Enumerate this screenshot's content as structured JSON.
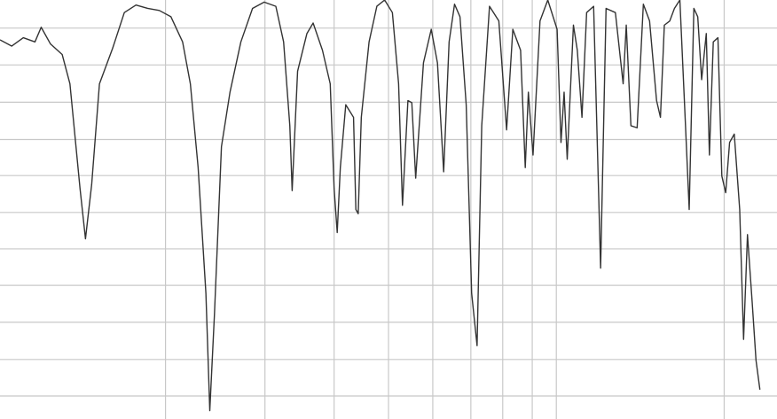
{
  "chart_data": {
    "type": "line",
    "title": "",
    "xlabel": "",
    "ylabel": "",
    "grid": true,
    "legend": "none",
    "xlim": [
      0,
      100
    ],
    "ylim": [
      0,
      100
    ],
    "line_color": "#333333",
    "grid_color": "#c8c8c8",
    "vertical_gridlines_x": [
      21.3,
      34.1,
      43.0,
      50.0,
      55.7,
      60.6,
      64.7,
      68.5,
      71.6,
      93.2
    ],
    "horizontal_gridlines_y": [
      93.3,
      84.5,
      75.6,
      66.7,
      58.1,
      49.3,
      40.6,
      31.9,
      23.1,
      14.2,
      5.5
    ],
    "series": [
      {
        "values": [
          [
            0.0,
            90.5
          ],
          [
            1.5,
            89.0
          ],
          [
            3.0,
            91.0
          ],
          [
            4.5,
            90.0
          ],
          [
            5.3,
            93.5
          ],
          [
            6.5,
            89.5
          ],
          [
            8.0,
            87.0
          ],
          [
            9.0,
            80.0
          ],
          [
            10.3,
            55.0
          ],
          [
            11.0,
            43.0
          ],
          [
            11.8,
            56.0
          ],
          [
            12.8,
            80.0
          ],
          [
            14.5,
            88.5
          ],
          [
            16.0,
            97.0
          ],
          [
            17.5,
            98.8
          ],
          [
            19.0,
            98.0
          ],
          [
            20.5,
            97.5
          ],
          [
            22.0,
            96.0
          ],
          [
            23.5,
            90.0
          ],
          [
            24.5,
            80.0
          ],
          [
            25.5,
            60.0
          ],
          [
            26.5,
            30.0
          ],
          [
            27.0,
            2.0
          ],
          [
            27.6,
            25.0
          ],
          [
            28.5,
            65.0
          ],
          [
            29.6,
            78.0
          ],
          [
            31.0,
            90.0
          ],
          [
            32.5,
            98.0
          ],
          [
            34.0,
            99.5
          ],
          [
            35.5,
            98.5
          ],
          [
            36.5,
            90.0
          ],
          [
            37.3,
            70.0
          ],
          [
            37.6,
            54.5
          ],
          [
            38.3,
            83.0
          ],
          [
            39.5,
            92.0
          ],
          [
            40.3,
            94.5
          ],
          [
            41.5,
            88.0
          ],
          [
            42.5,
            80.0
          ],
          [
            43.0,
            55.0
          ],
          [
            43.4,
            44.5
          ],
          [
            43.8,
            60.0
          ],
          [
            44.5,
            75.0
          ],
          [
            45.5,
            72.0
          ],
          [
            45.8,
            50.0
          ],
          [
            46.1,
            49.0
          ],
          [
            46.5,
            72.0
          ],
          [
            47.5,
            90.0
          ],
          [
            48.5,
            98.5
          ],
          [
            49.5,
            100.0
          ],
          [
            50.5,
            97.0
          ],
          [
            51.3,
            80.0
          ],
          [
            51.8,
            51.0
          ],
          [
            52.5,
            76.0
          ],
          [
            53.0,
            75.5
          ],
          [
            53.5,
            57.5
          ],
          [
            54.5,
            85.0
          ],
          [
            55.5,
            93.0
          ],
          [
            56.3,
            85.0
          ],
          [
            57.1,
            59.0
          ],
          [
            57.8,
            90.0
          ],
          [
            58.5,
            99.0
          ],
          [
            59.2,
            96.0
          ],
          [
            60.0,
            75.0
          ],
          [
            60.7,
            30.0
          ],
          [
            61.4,
            17.5
          ],
          [
            62.0,
            70.0
          ],
          [
            63.0,
            98.5
          ],
          [
            64.2,
            95.0
          ],
          [
            65.2,
            69.0
          ],
          [
            66.0,
            93.0
          ],
          [
            67.0,
            88.0
          ],
          [
            67.6,
            60.0
          ],
          [
            68.0,
            78.0
          ],
          [
            68.6,
            63.0
          ],
          [
            69.5,
            95.0
          ],
          [
            70.5,
            100.0
          ],
          [
            71.7,
            93.0
          ],
          [
            72.2,
            66.0
          ],
          [
            72.6,
            78.0
          ],
          [
            73.0,
            62.0
          ],
          [
            73.8,
            94.0
          ],
          [
            74.3,
            88.0
          ],
          [
            74.9,
            72.0
          ],
          [
            75.5,
            97.0
          ],
          [
            76.4,
            98.5
          ],
          [
            77.3,
            36.0
          ],
          [
            78.0,
            98.0
          ],
          [
            79.2,
            97.0
          ],
          [
            80.2,
            80.0
          ],
          [
            80.6,
            94.0
          ],
          [
            81.2,
            70.0
          ],
          [
            82.0,
            69.5
          ],
          [
            82.8,
            99.0
          ],
          [
            83.6,
            95.0
          ],
          [
            84.5,
            76.0
          ],
          [
            85.0,
            72.0
          ],
          [
            85.5,
            94.0
          ],
          [
            86.2,
            95.0
          ],
          [
            86.8,
            98.0
          ],
          [
            87.5,
            100.0
          ],
          [
            88.2,
            71.0
          ],
          [
            88.7,
            50.0
          ],
          [
            89.3,
            98.0
          ],
          [
            89.8,
            96.0
          ],
          [
            90.3,
            81.0
          ],
          [
            90.9,
            92.0
          ],
          [
            91.3,
            63.0
          ],
          [
            91.8,
            90.0
          ],
          [
            92.4,
            91.0
          ],
          [
            92.9,
            58.0
          ],
          [
            93.4,
            54.0
          ],
          [
            93.9,
            66.0
          ],
          [
            94.5,
            68.0
          ],
          [
            95.2,
            50.0
          ],
          [
            95.7,
            19.0
          ],
          [
            96.2,
            44.0
          ],
          [
            96.8,
            28.0
          ],
          [
            97.3,
            14.0
          ],
          [
            97.8,
            7.0
          ]
        ]
      }
    ]
  }
}
